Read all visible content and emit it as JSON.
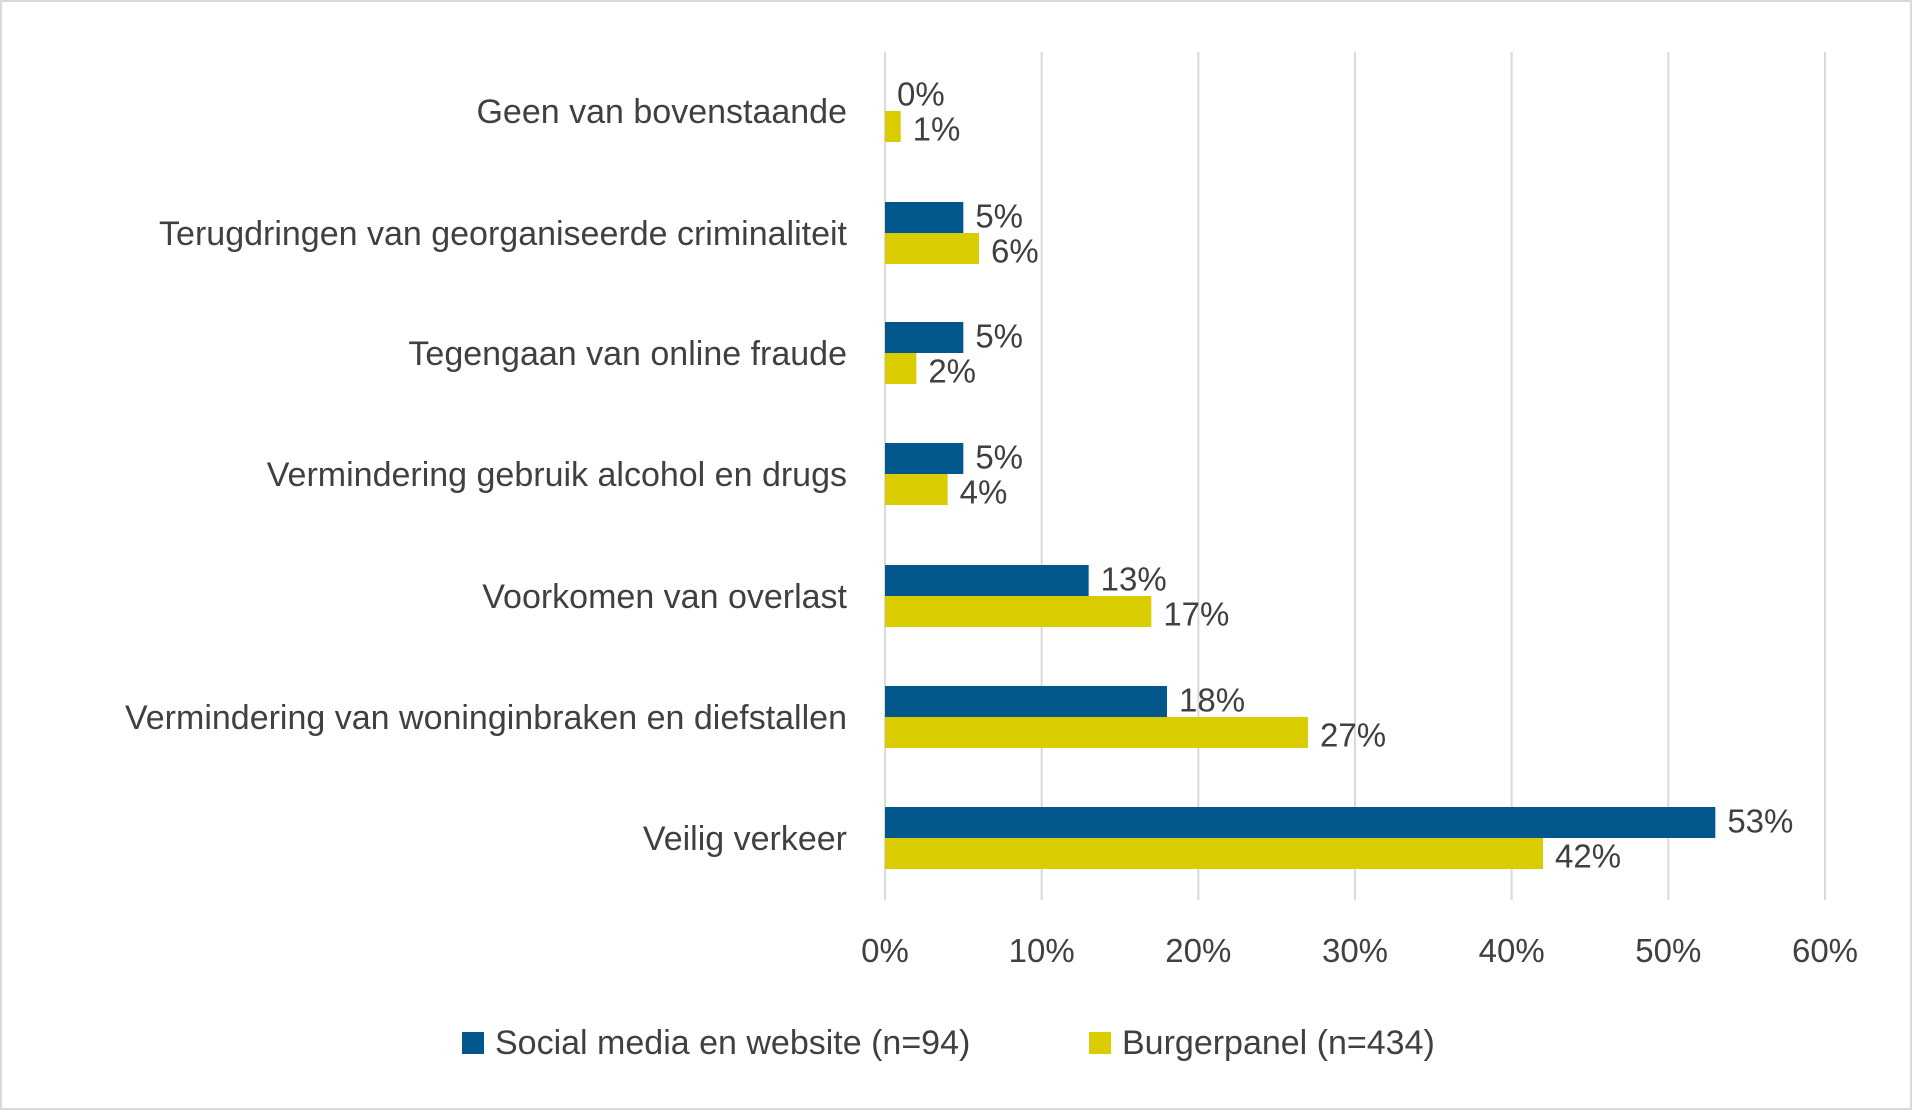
{
  "chart_data": {
    "type": "bar",
    "orientation": "horizontal",
    "categories": [
      "Geen van bovenstaande",
      "Terugdringen van georganiseerde criminaliteit",
      "Tegengaan van online fraude",
      "Vermindering gebruik alcohol en drugs",
      "Voorkomen van overlast",
      "Vermindering van woninginbraken en diefstallen",
      "Veilig verkeer"
    ],
    "series": [
      {
        "name": "Social media en website (n=94)",
        "color": "#02578c",
        "values": [
          0,
          5,
          5,
          5,
          13,
          18,
          53
        ],
        "labels": [
          "0%",
          "5%",
          "5%",
          "5%",
          "13%",
          "18%",
          "53%"
        ]
      },
      {
        "name": "Burgerpanel (n=434)",
        "color": "#d9cc00",
        "values": [
          1,
          6,
          2,
          4,
          17,
          27,
          42
        ],
        "labels": [
          "1%",
          "6%",
          "2%",
          "4%",
          "17%",
          "27%",
          "42%"
        ]
      }
    ],
    "xlim": [
      0,
      60
    ],
    "xticks": [
      "0%",
      "10%",
      "20%",
      "30%",
      "40%",
      "50%",
      "60%"
    ],
    "grid": true,
    "legend": "bottom",
    "title": "",
    "xlabel": "",
    "ylabel": ""
  }
}
